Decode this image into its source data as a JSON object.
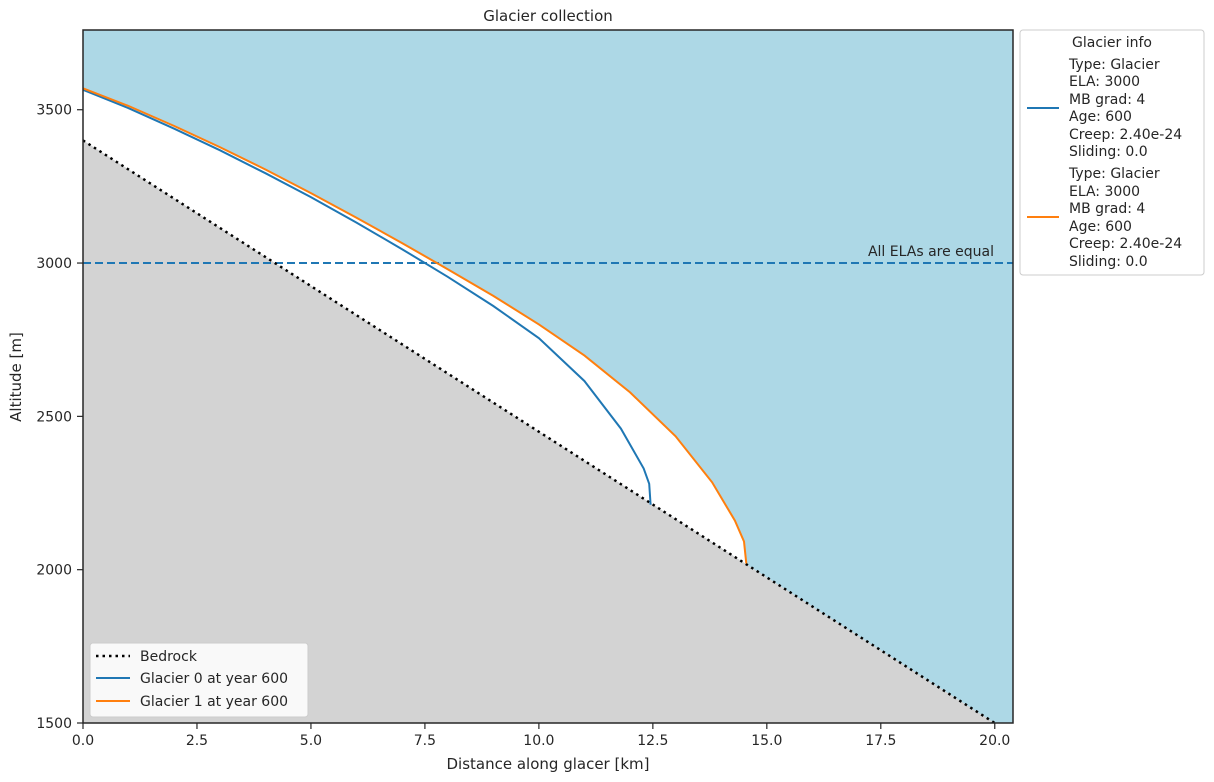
{
  "chart_data": {
    "type": "line",
    "title": "Glacier collection",
    "xlabel": "Distance along glacer [km]",
    "ylabel": "Altitude [m]",
    "xlim": [
      0,
      20.4
    ],
    "ylim": [
      1500,
      3760
    ],
    "xticks": [
      0.0,
      2.5,
      5.0,
      7.5,
      10.0,
      12.5,
      15.0,
      17.5,
      20.0
    ],
    "xtick_labels": [
      "0.0",
      "2.5",
      "5.0",
      "7.5",
      "10.0",
      "12.5",
      "15.0",
      "17.5",
      "20.0"
    ],
    "yticks": [
      1500,
      2000,
      2500,
      3000,
      3500
    ],
    "ytick_labels": [
      "1500",
      "2000",
      "2500",
      "3000",
      "3500"
    ],
    "grid": false,
    "colors": {
      "sky": "#add8e6",
      "bedrock_fill": "#d3d3d3",
      "ice_fill": "#ffffff",
      "bedrock_line": "#000000",
      "glacier0": "#1f77b4",
      "glacier1": "#ff7f0e",
      "ela_line": "#1f77b4"
    },
    "bedrock": {
      "name": "Bedrock",
      "x": [
        0,
        20.0
      ],
      "y": [
        3400,
        1500
      ]
    },
    "series": [
      {
        "name": "Glacier 0 at year 600",
        "color": "#1f77b4",
        "x": [
          0,
          1,
          2,
          3,
          4,
          5,
          6,
          7,
          8,
          9,
          10,
          11,
          11.8,
          12.3,
          12.42,
          12.45
        ],
        "y": [
          3565,
          3505,
          3438,
          3368,
          3293,
          3215,
          3132,
          3045,
          2955,
          2860,
          2755,
          2615,
          2460,
          2330,
          2280,
          2212
        ]
      },
      {
        "name": "Glacier 1 at year 600",
        "color": "#ff7f0e",
        "x": [
          0,
          1,
          2,
          3,
          4,
          5,
          6,
          7,
          8,
          9,
          10,
          11,
          12,
          13,
          13.8,
          14.3,
          14.5,
          14.55
        ],
        "y": [
          3570,
          3512,
          3447,
          3378,
          3305,
          3228,
          3148,
          3065,
          2980,
          2893,
          2800,
          2698,
          2578,
          2435,
          2285,
          2160,
          2092,
          2020
        ]
      }
    ],
    "ela": {
      "value": 3000,
      "annotation": "All ELAs are equal"
    },
    "legend_lower_left": {
      "placement": "lower-left",
      "entries": [
        "Bedrock",
        "Glacier 0 at year 600",
        "Glacier 1 at year 600"
      ]
    },
    "legend_info": {
      "placement": "outside-upper-right",
      "title": "Glacier info",
      "entries": [
        {
          "color": "#1f77b4",
          "lines": [
            "Type: Glacier",
            "ELA: 3000",
            "MB grad: 4",
            "Age: 600",
            "Creep: 2.40e-24",
            "Sliding: 0.0"
          ]
        },
        {
          "color": "#ff7f0e",
          "lines": [
            "Type: Glacier",
            "ELA: 3000",
            "MB grad: 4",
            "Age: 600",
            "Creep: 2.40e-24",
            "Sliding: 0.0"
          ]
        }
      ]
    }
  }
}
